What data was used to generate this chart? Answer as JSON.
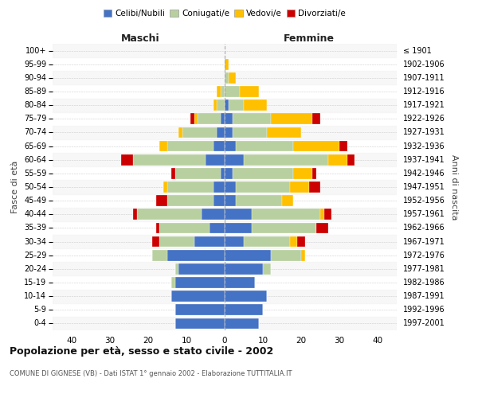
{
  "age_groups": [
    "0-4",
    "5-9",
    "10-14",
    "15-19",
    "20-24",
    "25-29",
    "30-34",
    "35-39",
    "40-44",
    "45-49",
    "50-54",
    "55-59",
    "60-64",
    "65-69",
    "70-74",
    "75-79",
    "80-84",
    "85-89",
    "90-94",
    "95-99",
    "100+"
  ],
  "birth_years": [
    "1997-2001",
    "1992-1996",
    "1987-1991",
    "1982-1986",
    "1977-1981",
    "1972-1976",
    "1967-1971",
    "1962-1966",
    "1957-1961",
    "1952-1956",
    "1947-1951",
    "1942-1946",
    "1937-1941",
    "1932-1936",
    "1927-1931",
    "1922-1926",
    "1917-1921",
    "1912-1916",
    "1907-1911",
    "1902-1906",
    "≤ 1901"
  ],
  "colors": {
    "celibi": "#4472c4",
    "coniugati": "#b8d0a0",
    "vedovi": "#ffc000",
    "divorziati": "#cc0000"
  },
  "males": {
    "celibi": [
      13,
      13,
      14,
      13,
      12,
      15,
      8,
      4,
      6,
      3,
      3,
      1,
      5,
      3,
      2,
      1,
      0,
      0,
      0,
      0,
      0
    ],
    "coniugati": [
      0,
      0,
      0,
      1,
      1,
      4,
      9,
      13,
      17,
      12,
      12,
      12,
      19,
      12,
      9,
      6,
      2,
      1,
      0,
      0,
      0
    ],
    "vedovi": [
      0,
      0,
      0,
      0,
      0,
      0,
      0,
      0,
      0,
      0,
      1,
      0,
      0,
      2,
      1,
      1,
      1,
      1,
      0,
      0,
      0
    ],
    "divorziati": [
      0,
      0,
      0,
      0,
      0,
      0,
      2,
      1,
      1,
      3,
      0,
      1,
      3,
      0,
      0,
      1,
      0,
      0,
      0,
      0,
      0
    ]
  },
  "females": {
    "celibi": [
      9,
      10,
      11,
      8,
      10,
      12,
      5,
      7,
      7,
      3,
      3,
      2,
      5,
      3,
      2,
      2,
      1,
      0,
      0,
      0,
      0
    ],
    "coniugati": [
      0,
      0,
      0,
      0,
      2,
      8,
      12,
      17,
      18,
      12,
      14,
      16,
      22,
      15,
      9,
      10,
      4,
      4,
      1,
      0,
      0
    ],
    "vedovi": [
      0,
      0,
      0,
      0,
      0,
      1,
      2,
      0,
      1,
      3,
      5,
      5,
      5,
      12,
      9,
      11,
      6,
      5,
      2,
      1,
      0
    ],
    "divorziati": [
      0,
      0,
      0,
      0,
      0,
      0,
      2,
      3,
      2,
      0,
      3,
      1,
      2,
      2,
      0,
      2,
      0,
      0,
      0,
      0,
      0
    ]
  },
  "title": "Popolazione per età, sesso e stato civile - 2002",
  "subtitle": "COMUNE DI GIGNESE (VB) - Dati ISTAT 1° gennaio 2002 - Elaborazione TUTTITALIA.IT",
  "xlabel_left": "Maschi",
  "xlabel_right": "Femmine",
  "ylabel_left": "Fasce di età",
  "ylabel_right": "Anni di nascita",
  "xlim": 45,
  "legend_labels": [
    "Celibi/Nubili",
    "Coniugati/e",
    "Vedovi/e",
    "Divorziati/e"
  ],
  "background_color": "#ffffff",
  "grid_color": "#cccccc"
}
